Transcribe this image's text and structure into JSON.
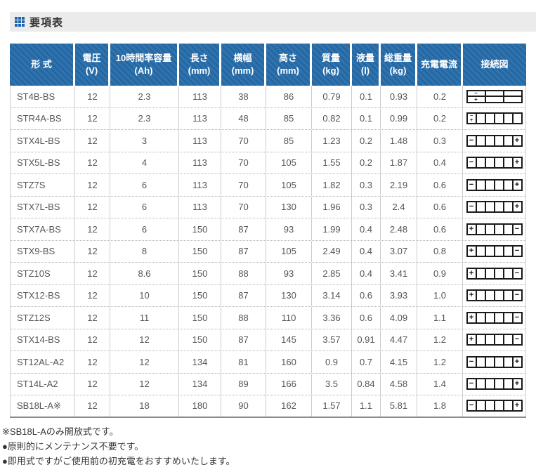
{
  "header": {
    "title": "要項表",
    "icon": "table-grid-icon"
  },
  "table": {
    "columns": [
      {
        "label": "形  式",
        "unit": ""
      },
      {
        "label": "電圧",
        "unit": "(V)"
      },
      {
        "label": "10時間率容量",
        "unit": "(Ah)"
      },
      {
        "label": "長さ",
        "unit": "(mm)"
      },
      {
        "label": "横幅",
        "unit": "(mm)"
      },
      {
        "label": "高さ",
        "unit": "(mm)"
      },
      {
        "label": "質量",
        "unit": "(kg)"
      },
      {
        "label": "液量",
        "unit": "(l)"
      },
      {
        "label": "総重量",
        "unit": "(kg)"
      },
      {
        "label": "充電電流",
        "unit": ""
      },
      {
        "label": "接続図",
        "unit": ""
      }
    ],
    "rows": [
      {
        "model": "ST4B-BS",
        "voltage": "12",
        "capacity_10hr": "2.3",
        "length_mm": "113",
        "width_mm": "38",
        "height_mm": "86",
        "mass_kg": "0.79",
        "liquid_l": "0.1",
        "total_weight_kg": "0.93",
        "charge_current": "0.2",
        "diagram": {
          "layout": "2x3",
          "top_left": "minus",
          "bottom_left": "plus"
        }
      },
      {
        "model": "STR4A-BS",
        "voltage": "12",
        "capacity_10hr": "2.3",
        "length_mm": "113",
        "width_mm": "48",
        "height_mm": "85",
        "mass_kg": "0.82",
        "liquid_l": "0.1",
        "total_weight_kg": "0.99",
        "charge_current": "0.2",
        "diagram": {
          "layout": "1x6",
          "left": "minus-plus-stacked"
        }
      },
      {
        "model": "STX4L-BS",
        "voltage": "12",
        "capacity_10hr": "3",
        "length_mm": "113",
        "width_mm": "70",
        "height_mm": "85",
        "mass_kg": "1.23",
        "liquid_l": "0.2",
        "total_weight_kg": "1.48",
        "charge_current": "0.3",
        "diagram": {
          "layout": "1x6",
          "left": "minus",
          "right": "plus"
        }
      },
      {
        "model": "STX5L-BS",
        "voltage": "12",
        "capacity_10hr": "4",
        "length_mm": "113",
        "width_mm": "70",
        "height_mm": "105",
        "mass_kg": "1.55",
        "liquid_l": "0.2",
        "total_weight_kg": "1.87",
        "charge_current": "0.4",
        "diagram": {
          "layout": "1x6",
          "left": "minus",
          "right": "plus"
        }
      },
      {
        "model": "STZ7S",
        "voltage": "12",
        "capacity_10hr": "6",
        "length_mm": "113",
        "width_mm": "70",
        "height_mm": "105",
        "mass_kg": "1.82",
        "liquid_l": "0.3",
        "total_weight_kg": "2.19",
        "charge_current": "0.6",
        "diagram": {
          "layout": "1x6",
          "left": "minus",
          "right": "plus"
        }
      },
      {
        "model": "STX7L-BS",
        "voltage": "12",
        "capacity_10hr": "6",
        "length_mm": "113",
        "width_mm": "70",
        "height_mm": "130",
        "mass_kg": "1.96",
        "liquid_l": "0.3",
        "total_weight_kg": "2.4",
        "charge_current": "0.6",
        "diagram": {
          "layout": "1x6",
          "left": "minus",
          "right": "plus"
        }
      },
      {
        "model": "STX7A-BS",
        "voltage": "12",
        "capacity_10hr": "6",
        "length_mm": "150",
        "width_mm": "87",
        "height_mm": "93",
        "mass_kg": "1.99",
        "liquid_l": "0.4",
        "total_weight_kg": "2.48",
        "charge_current": "0.6",
        "diagram": {
          "layout": "1x6",
          "left": "plus",
          "right": "minus"
        }
      },
      {
        "model": "STX9-BS",
        "voltage": "12",
        "capacity_10hr": "8",
        "length_mm": "150",
        "width_mm": "87",
        "height_mm": "105",
        "mass_kg": "2.49",
        "liquid_l": "0.4",
        "total_weight_kg": "3.07",
        "charge_current": "0.8",
        "diagram": {
          "layout": "1x6",
          "left": "plus",
          "right": "minus"
        }
      },
      {
        "model": "STZ10S",
        "voltage": "12",
        "capacity_10hr": "8.6",
        "length_mm": "150",
        "width_mm": "88",
        "height_mm": "93",
        "mass_kg": "2.85",
        "liquid_l": "0.4",
        "total_weight_kg": "3.41",
        "charge_current": "0.9",
        "diagram": {
          "layout": "1x6",
          "left": "plus",
          "right": "minus"
        }
      },
      {
        "model": "STX12-BS",
        "voltage": "12",
        "capacity_10hr": "10",
        "length_mm": "150",
        "width_mm": "87",
        "height_mm": "130",
        "mass_kg": "3.14",
        "liquid_l": "0.6",
        "total_weight_kg": "3.93",
        "charge_current": "1.0",
        "diagram": {
          "layout": "1x6",
          "left": "plus",
          "right": "minus"
        }
      },
      {
        "model": "STZ12S",
        "voltage": "12",
        "capacity_10hr": "11",
        "length_mm": "150",
        "width_mm": "88",
        "height_mm": "110",
        "mass_kg": "3.36",
        "liquid_l": "0.6",
        "total_weight_kg": "4.09",
        "charge_current": "1.1",
        "diagram": {
          "layout": "1x6",
          "left": "plus",
          "right": "minus"
        }
      },
      {
        "model": "STX14-BS",
        "voltage": "12",
        "capacity_10hr": "12",
        "length_mm": "150",
        "width_mm": "87",
        "height_mm": "145",
        "mass_kg": "3.57",
        "liquid_l": "0.91",
        "total_weight_kg": "4.47",
        "charge_current": "1.2",
        "diagram": {
          "layout": "1x6",
          "left": "plus",
          "right": "minus"
        }
      },
      {
        "model": "ST12AL-A2",
        "voltage": "12",
        "capacity_10hr": "12",
        "length_mm": "134",
        "width_mm": "81",
        "height_mm": "160",
        "mass_kg": "0.9",
        "liquid_l": "0.7",
        "total_weight_kg": "4.15",
        "charge_current": "1.2",
        "diagram": {
          "layout": "1x6",
          "left": "minus",
          "right": "plus"
        }
      },
      {
        "model": "ST14L-A2",
        "voltage": "12",
        "capacity_10hr": "12",
        "length_mm": "134",
        "width_mm": "89",
        "height_mm": "166",
        "mass_kg": "3.5",
        "liquid_l": "0.84",
        "total_weight_kg": "4.58",
        "charge_current": "1.4",
        "diagram": {
          "layout": "1x6",
          "left": "minus",
          "right": "plus"
        }
      },
      {
        "model": "SB18L-A※",
        "voltage": "12",
        "capacity_10hr": "18",
        "length_mm": "180",
        "width_mm": "90",
        "height_mm": "162",
        "mass_kg": "1.57",
        "liquid_l": "1.1",
        "total_weight_kg": "5.81",
        "charge_current": "1.8",
        "diagram": {
          "layout": "1x6",
          "left": "minus",
          "right": "plus"
        }
      }
    ]
  },
  "footnotes": [
    "※SB18L-Aのみ開放式です。",
    "●原則的にメンテナンス不要です。",
    "●即用式ですがご使用前の初充電をおすすめいたします。"
  ],
  "colors": {
    "header_blue": "#2d74b0",
    "header_blue_stripe": "#27669f",
    "titlebar_bg": "#ebebeb",
    "diagram_black": "#1a1a1a"
  },
  "terminal_signs": {
    "minus": "−",
    "plus": "+"
  }
}
